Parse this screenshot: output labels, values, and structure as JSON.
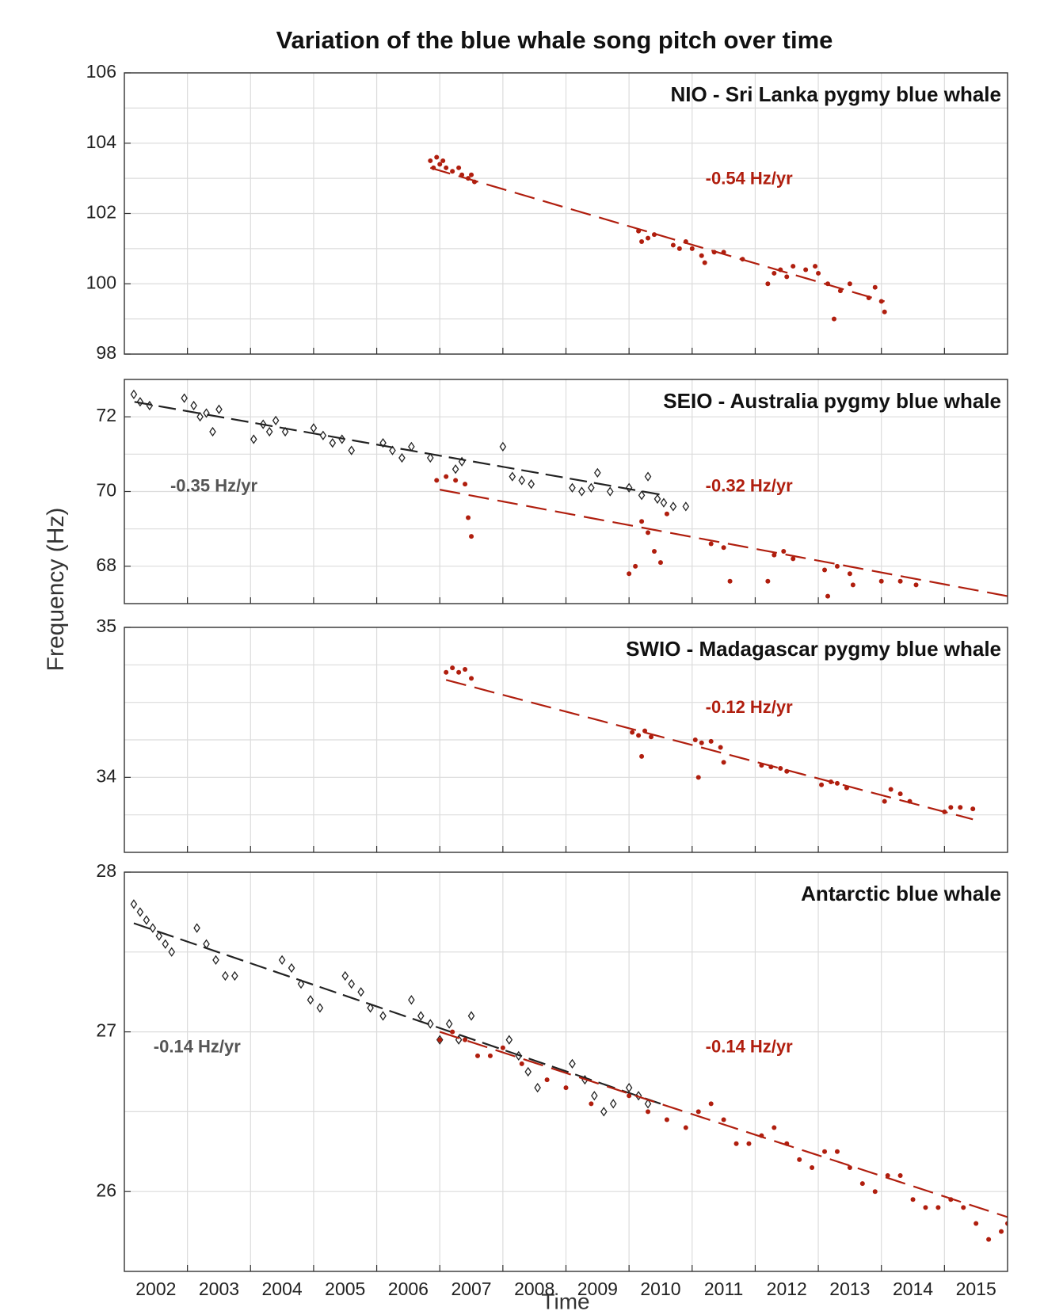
{
  "figure": {
    "title": "Variation of the blue whale song pitch over time",
    "xlabel": "Time",
    "ylabel": "Frequency (Hz)"
  },
  "chart_data": [
    {
      "type": "scatter",
      "title": "NIO - Sri Lanka pygmy blue whale",
      "xlim": [
        2002,
        2016
      ],
      "xgrid": [
        2003,
        2004,
        2005,
        2006,
        2007,
        2008,
        2009,
        2010,
        2011,
        2012,
        2013,
        2014,
        2015
      ],
      "ylim": [
        98,
        106
      ],
      "yticks": [
        98,
        100,
        102,
        104,
        106
      ],
      "yminor": [
        99,
        101,
        103,
        105
      ],
      "grid": true,
      "series": [
        {
          "color": "#b01e0e",
          "marker": "dot",
          "rate": "-0.54 Hz/yr",
          "x": [
            2006.85,
            2006.9,
            2006.95,
            2007.0,
            2007.05,
            2007.1,
            2007.2,
            2007.3,
            2007.35,
            2007.45,
            2007.5,
            2007.55,
            2010.15,
            2010.2,
            2010.3,
            2010.4,
            2010.7,
            2010.8,
            2010.9,
            2011.0,
            2011.15,
            2011.2,
            2011.35,
            2011.5,
            2011.8,
            2012.2,
            2012.3,
            2012.4,
            2012.5,
            2012.6,
            2012.8,
            2012.95,
            2013.0,
            2013.15,
            2013.25,
            2013.35,
            2013.5,
            2013.8,
            2013.9,
            2014.0,
            2014.05
          ],
          "y": [
            103.5,
            103.3,
            103.6,
            103.4,
            103.5,
            103.3,
            103.2,
            103.3,
            103.1,
            103.0,
            103.1,
            102.9,
            101.5,
            101.2,
            101.3,
            101.4,
            101.1,
            101.0,
            101.2,
            101.0,
            100.8,
            100.6,
            100.9,
            100.9,
            100.7,
            100.0,
            100.3,
            100.4,
            100.2,
            100.5,
            100.4,
            100.5,
            100.3,
            100.0,
            99.0,
            99.8,
            100.0,
            99.6,
            99.9,
            99.5,
            99.2
          ],
          "trend": {
            "x": [
              2006.85,
              2014.05
            ],
            "y": [
              103.3,
              99.5
            ]
          }
        }
      ]
    },
    {
      "type": "scatter",
      "title": "SEIO - Australia pygmy blue whale",
      "xlim": [
        2002,
        2016
      ],
      "xgrid": [
        2003,
        2004,
        2005,
        2006,
        2007,
        2008,
        2009,
        2010,
        2011,
        2012,
        2013,
        2014,
        2015
      ],
      "ylim": [
        67,
        73
      ],
      "yticks": [
        68,
        70,
        72
      ],
      "yminor": [
        69,
        71
      ],
      "grid": true,
      "series": [
        {
          "color": "#222222",
          "marker": "diamond",
          "rate": "-0.35 Hz/yr",
          "x": [
            2002.15,
            2002.25,
            2002.4,
            2002.95,
            2003.1,
            2003.2,
            2003.3,
            2003.4,
            2003.5,
            2004.05,
            2004.2,
            2004.3,
            2004.4,
            2004.55,
            2005.0,
            2005.15,
            2005.3,
            2005.45,
            2005.6,
            2006.1,
            2006.25,
            2006.4,
            2006.55,
            2006.85,
            2007.25,
            2007.35,
            2008.0,
            2008.15,
            2008.3,
            2008.45,
            2009.1,
            2009.25,
            2009.4,
            2009.5,
            2009.7,
            2010.0,
            2010.2,
            2010.3,
            2010.45,
            2010.55,
            2010.7,
            2010.9
          ],
          "y": [
            72.6,
            72.4,
            72.3,
            72.5,
            72.3,
            72.0,
            72.1,
            71.6,
            72.2,
            71.4,
            71.8,
            71.6,
            71.9,
            71.6,
            71.7,
            71.5,
            71.3,
            71.4,
            71.1,
            71.3,
            71.1,
            70.9,
            71.2,
            70.9,
            70.6,
            70.8,
            71.2,
            70.4,
            70.3,
            70.2,
            70.1,
            70.0,
            70.1,
            70.5,
            70.0,
            70.1,
            69.9,
            70.4,
            69.8,
            69.7,
            69.6,
            69.6
          ],
          "trend": {
            "x": [
              2002.16,
              2010.56
            ],
            "y": [
              72.4,
              69.9
            ]
          }
        },
        {
          "color": "#b01e0e",
          "marker": "dot",
          "rate": "-0.32 Hz/yr",
          "x": [
            2006.95,
            2007.1,
            2007.25,
            2007.4,
            2007.45,
            2007.5,
            2010.0,
            2010.1,
            2010.2,
            2010.3,
            2010.4,
            2010.5,
            2010.6,
            2011.3,
            2011.5,
            2011.6,
            2012.2,
            2012.3,
            2012.45,
            2012.6,
            2013.1,
            2013.15,
            2013.3,
            2013.5,
            2013.55,
            2014.0,
            2014.3,
            2014.55
          ],
          "y": [
            70.3,
            70.4,
            70.3,
            70.2,
            69.3,
            68.8,
            67.8,
            68.0,
            69.2,
            68.9,
            68.4,
            68.1,
            69.4,
            68.6,
            68.5,
            67.6,
            67.6,
            68.3,
            68.4,
            68.2,
            67.9,
            67.2,
            68.0,
            67.8,
            67.5,
            67.6,
            67.6,
            67.5
          ],
          "trend": {
            "x": [
              2007.0,
              2016.0
            ],
            "y": [
              70.05,
              67.2
            ]
          }
        }
      ]
    },
    {
      "type": "scatter",
      "title": "SWIO - Madagascar pygmy blue whale",
      "xlim": [
        2002,
        2016
      ],
      "xgrid": [
        2003,
        2004,
        2005,
        2006,
        2007,
        2008,
        2009,
        2010,
        2011,
        2012,
        2013,
        2014,
        2015
      ],
      "ylim": [
        33.5,
        35
      ],
      "yticks": [
        34,
        35
      ],
      "yminor": [
        33.75,
        34.25,
        34.5,
        34.75
      ],
      "grid": true,
      "series": [
        {
          "color": "#b01e0e",
          "marker": "dot",
          "rate": "-0.12 Hz/yr",
          "x": [
            2007.1,
            2007.2,
            2007.3,
            2007.4,
            2007.5,
            2010.05,
            2010.15,
            2010.25,
            2010.35,
            2010.2,
            2011.05,
            2011.15,
            2011.3,
            2011.45,
            2011.1,
            2011.5,
            2012.1,
            2012.25,
            2012.4,
            2012.5,
            2013.05,
            2013.2,
            2013.3,
            2013.45,
            2014.05,
            2014.15,
            2014.3,
            2014.45,
            2015.0,
            2015.1,
            2015.25,
            2015.45
          ],
          "y": [
            34.7,
            34.73,
            34.7,
            34.72,
            34.66,
            34.3,
            34.28,
            34.31,
            34.27,
            34.14,
            34.25,
            34.23,
            34.24,
            34.2,
            34.0,
            34.1,
            34.08,
            34.07,
            34.06,
            34.04,
            33.95,
            33.97,
            33.96,
            33.93,
            33.84,
            33.92,
            33.89,
            33.84,
            33.77,
            33.8,
            33.8,
            33.79
          ],
          "trend": {
            "x": [
              2007.1,
              2015.45
            ],
            "y": [
              34.65,
              33.72
            ]
          }
        }
      ]
    },
    {
      "type": "scatter",
      "title": "Antarctic blue whale",
      "xlim": [
        2002,
        2016
      ],
      "xgrid": [
        2003,
        2004,
        2005,
        2006,
        2007,
        2008,
        2009,
        2010,
        2011,
        2012,
        2013,
        2014,
        2015
      ],
      "xticks": [
        {
          "value": 2002.5,
          "label": "2002"
        },
        {
          "value": 2003.5,
          "label": "2003"
        },
        {
          "value": 2004.5,
          "label": "2004"
        },
        {
          "value": 2005.5,
          "label": "2005"
        },
        {
          "value": 2006.5,
          "label": "2006"
        },
        {
          "value": 2007.5,
          "label": "2007"
        },
        {
          "value": 2008.5,
          "label": "2008"
        },
        {
          "value": 2009.5,
          "label": "2009"
        },
        {
          "value": 2010.5,
          "label": "2010"
        },
        {
          "value": 2011.5,
          "label": "2011"
        },
        {
          "value": 2012.5,
          "label": "2012"
        },
        {
          "value": 2013.5,
          "label": "2013"
        },
        {
          "value": 2014.5,
          "label": "2014"
        },
        {
          "value": 2015.5,
          "label": "2015"
        }
      ],
      "ylim": [
        25.5,
        28
      ],
      "yticks": [
        26,
        27,
        28
      ],
      "yminor": [
        26.5,
        27.5
      ],
      "grid": true,
      "series": [
        {
          "color": "#222222",
          "marker": "diamond",
          "rate": "-0.14 Hz/yr",
          "x": [
            2002.15,
            2002.25,
            2002.35,
            2002.45,
            2002.55,
            2002.65,
            2002.75,
            2003.15,
            2003.3,
            2003.45,
            2003.6,
            2003.75,
            2004.5,
            2004.65,
            2004.8,
            2004.95,
            2005.1,
            2005.5,
            2005.6,
            2005.75,
            2005.9,
            2006.1,
            2006.55,
            2006.7,
            2006.85,
            2007.0,
            2007.15,
            2007.3,
            2007.5,
            2008.1,
            2008.25,
            2008.4,
            2008.55,
            2009.1,
            2009.3,
            2009.45,
            2009.6,
            2009.75,
            2010.0,
            2010.15,
            2010.3
          ],
          "y": [
            27.8,
            27.75,
            27.7,
            27.65,
            27.6,
            27.55,
            27.5,
            27.65,
            27.55,
            27.45,
            27.35,
            27.35,
            27.45,
            27.4,
            27.3,
            27.2,
            27.15,
            27.35,
            27.3,
            27.25,
            27.15,
            27.1,
            27.2,
            27.1,
            27.05,
            26.95,
            27.05,
            26.95,
            27.1,
            26.95,
            26.85,
            26.75,
            26.65,
            26.8,
            26.7,
            26.6,
            26.5,
            26.55,
            26.65,
            26.6,
            26.55
          ],
          "trend": {
            "x": [
              2002.15,
              2010.5
            ],
            "y": [
              27.68,
              26.55
            ]
          }
        },
        {
          "color": "#b01e0e",
          "marker": "dot",
          "rate": "-0.14 Hz/yr",
          "x": [
            2007.0,
            2007.2,
            2007.4,
            2007.6,
            2007.8,
            2008.0,
            2008.3,
            2008.7,
            2009.0,
            2009.4,
            2010.0,
            2010.3,
            2010.6,
            2010.9,
            2011.1,
            2011.3,
            2011.5,
            2011.7,
            2011.9,
            2012.1,
            2012.3,
            2012.5,
            2012.7,
            2012.9,
            2013.1,
            2013.3,
            2013.5,
            2013.7,
            2013.9,
            2014.1,
            2014.3,
            2014.5,
            2014.7,
            2014.9,
            2015.1,
            2015.3,
            2015.5,
            2015.7,
            2015.9,
            2016.0
          ],
          "y": [
            26.95,
            27.0,
            26.95,
            26.85,
            26.85,
            26.9,
            26.8,
            26.7,
            26.65,
            26.55,
            26.6,
            26.5,
            26.45,
            26.4,
            26.5,
            26.55,
            26.45,
            26.3,
            26.3,
            26.35,
            26.4,
            26.3,
            26.2,
            26.15,
            26.25,
            26.25,
            26.15,
            26.05,
            26.0,
            26.1,
            26.1,
            25.95,
            25.9,
            25.9,
            25.95,
            25.9,
            25.8,
            25.7,
            25.75,
            25.8
          ],
          "trend": {
            "x": [
              2007.0,
              2016.0
            ],
            "y": [
              27.0,
              25.84
            ]
          }
        }
      ]
    }
  ]
}
